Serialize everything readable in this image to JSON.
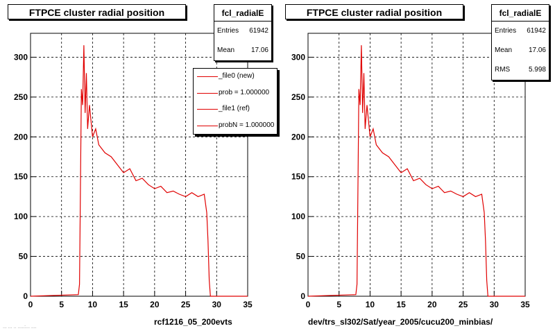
{
  "footer": {
    "date_text": "... ... .. .....:... ...."
  },
  "colors": {
    "histogram": "#e00000",
    "frame": "#000000",
    "grid": "#000000"
  },
  "panels": [
    {
      "title": "FTPCE cluster radial position",
      "stats": {
        "name": "fcl_radialE",
        "rows": [
          {
            "label": "Entries",
            "value": "61942"
          },
          {
            "label": "Mean",
            "value": "17.06"
          }
        ]
      },
      "legend": [
        {
          "label": "_file0 (new)"
        },
        {
          "label": "prob = 1.000000"
        },
        {
          "label": "_file1 (ref)"
        },
        {
          "label": "probN = 1.000000"
        }
      ],
      "xlabel": "rcf1216_05_200evts"
    },
    {
      "title": "FTPCE cluster radial position",
      "stats": {
        "name": "fcl_radialE",
        "rows": [
          {
            "label": "Entries",
            "value": "61942"
          },
          {
            "label": "Mean",
            "value": "17.06"
          },
          {
            "label": "RMS",
            "value": "5.998"
          }
        ]
      },
      "legend": [],
      "xlabel": "dev/trs_sl302/Sat/year_2005/cucu200_minbias/"
    }
  ],
  "chart_data": {
    "type": "line",
    "title": "FTPCE cluster radial position",
    "xlim": [
      0,
      35
    ],
    "ylim": [
      0,
      330
    ],
    "xticks": [
      0,
      5,
      10,
      15,
      20,
      25,
      30,
      35
    ],
    "yticks": [
      0,
      50,
      100,
      150,
      200,
      250,
      300
    ],
    "grid": true,
    "series": [
      {
        "x": [
          0,
          7.7,
          7.9,
          8.0,
          8.2,
          8.4,
          8.6,
          8.8,
          9.0,
          9.2,
          9.5,
          10,
          10.5,
          11,
          12,
          13,
          14,
          15,
          16,
          17,
          18,
          19,
          20,
          21,
          22,
          23,
          24,
          25,
          26,
          27,
          28,
          28.4,
          28.6,
          28.8,
          29,
          35
        ],
        "y": [
          0,
          2,
          15,
          95,
          260,
          240,
          315,
          230,
          280,
          210,
          240,
          200,
          210,
          190,
          180,
          175,
          165,
          155,
          160,
          145,
          148,
          140,
          135,
          138,
          130,
          132,
          128,
          125,
          130,
          125,
          128,
          105,
          70,
          20,
          0,
          0
        ]
      }
    ]
  }
}
